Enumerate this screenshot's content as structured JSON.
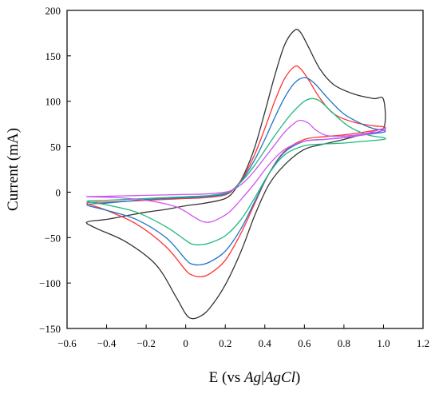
{
  "chart_data": {
    "type": "line",
    "xlabel": "E (vs Ag|AgCl)",
    "xlabel_parts": [
      "E (vs ",
      "Ag",
      "|",
      "AgCl",
      ")"
    ],
    "ylabel": "Current (mA)",
    "xlim": [
      -0.6,
      1.2
    ],
    "ylim": [
      -150,
      200
    ],
    "x_ticks": [
      "−0.6",
      "−0.4",
      "−0.2",
      "0",
      "0.2",
      "0.4",
      "0.6",
      "0.8",
      "1.0",
      "1.2"
    ],
    "y_ticks": [
      "200",
      "150",
      "100",
      "50",
      "0",
      "−50",
      "−100",
      "−150"
    ],
    "x_tick_values": [
      -0.6,
      -0.4,
      -0.2,
      0,
      0.2,
      0.4,
      0.6,
      0.8,
      1.0,
      1.2
    ],
    "y_tick_values": [
      200,
      150,
      100,
      50,
      0,
      -50,
      -100,
      -150
    ],
    "grid": false,
    "legend": "none",
    "series": [
      {
        "color": "#333333",
        "values": [
          [
            -0.5,
            -33
          ],
          [
            -0.4,
            -30
          ],
          [
            -0.3,
            -26
          ],
          [
            -0.2,
            -22
          ],
          [
            -0.1,
            -19
          ],
          [
            0,
            -15
          ],
          [
            0.1,
            -12
          ],
          [
            0.2,
            -7
          ],
          [
            0.25,
            3
          ],
          [
            0.3,
            22
          ],
          [
            0.35,
            50
          ],
          [
            0.4,
            88
          ],
          [
            0.45,
            128
          ],
          [
            0.5,
            162
          ],
          [
            0.55,
            178
          ],
          [
            0.58,
            176
          ],
          [
            0.62,
            160
          ],
          [
            0.68,
            135
          ],
          [
            0.75,
            118
          ],
          [
            0.85,
            108
          ],
          [
            0.95,
            103
          ],
          [
            1.0,
            102
          ],
          [
            1.0,
            70
          ],
          [
            0.9,
            64
          ],
          [
            0.8,
            58
          ],
          [
            0.7,
            53
          ],
          [
            0.6,
            47
          ],
          [
            0.5,
            30
          ],
          [
            0.42,
            8
          ],
          [
            0.35,
            -25
          ],
          [
            0.28,
            -65
          ],
          [
            0.2,
            -102
          ],
          [
            0.12,
            -128
          ],
          [
            0.07,
            -137
          ],
          [
            0.03,
            -139
          ],
          [
            0.0,
            -134
          ],
          [
            -0.05,
            -115
          ],
          [
            -0.15,
            -80
          ],
          [
            -0.3,
            -55
          ],
          [
            -0.45,
            -40
          ],
          [
            -0.5,
            -33
          ]
        ]
      },
      {
        "color": "#ff3333",
        "values": [
          [
            -0.5,
            -12
          ],
          [
            -0.4,
            -11
          ],
          [
            -0.3,
            -10
          ],
          [
            -0.2,
            -9
          ],
          [
            -0.1,
            -8
          ],
          [
            0,
            -7
          ],
          [
            0.1,
            -6
          ],
          [
            0.2,
            -3
          ],
          [
            0.25,
            5
          ],
          [
            0.3,
            20
          ],
          [
            0.35,
            42
          ],
          [
            0.4,
            70
          ],
          [
            0.45,
            100
          ],
          [
            0.5,
            125
          ],
          [
            0.55,
            138
          ],
          [
            0.58,
            136
          ],
          [
            0.62,
            124
          ],
          [
            0.68,
            103
          ],
          [
            0.75,
            86
          ],
          [
            0.85,
            77
          ],
          [
            0.95,
            73
          ],
          [
            1.0,
            72
          ],
          [
            1.0,
            70
          ],
          [
            0.9,
            66
          ],
          [
            0.8,
            63
          ],
          [
            0.7,
            61
          ],
          [
            0.6,
            58
          ],
          [
            0.5,
            45
          ],
          [
            0.42,
            20
          ],
          [
            0.35,
            -12
          ],
          [
            0.28,
            -45
          ],
          [
            0.2,
            -75
          ],
          [
            0.12,
            -90
          ],
          [
            0.07,
            -93
          ],
          [
            0.03,
            -91
          ],
          [
            0.0,
            -86
          ],
          [
            -0.1,
            -60
          ],
          [
            -0.25,
            -35
          ],
          [
            -0.4,
            -20
          ],
          [
            -0.5,
            -12
          ]
        ]
      },
      {
        "color": "#1f73c9",
        "values": [
          [
            -0.5,
            -14
          ],
          [
            -0.4,
            -12
          ],
          [
            -0.3,
            -10
          ],
          [
            -0.2,
            -8
          ],
          [
            -0.1,
            -7
          ],
          [
            0,
            -6
          ],
          [
            0.1,
            -5
          ],
          [
            0.2,
            -2
          ],
          [
            0.25,
            5
          ],
          [
            0.3,
            18
          ],
          [
            0.35,
            36
          ],
          [
            0.4,
            58
          ],
          [
            0.45,
            82
          ],
          [
            0.5,
            104
          ],
          [
            0.55,
            120
          ],
          [
            0.6,
            126
          ],
          [
            0.65,
            120
          ],
          [
            0.72,
            103
          ],
          [
            0.8,
            86
          ],
          [
            0.9,
            74
          ],
          [
            0.95,
            70
          ],
          [
            1.0,
            68
          ],
          [
            1.0,
            66
          ],
          [
            0.9,
            63
          ],
          [
            0.8,
            60
          ],
          [
            0.7,
            58
          ],
          [
            0.6,
            56
          ],
          [
            0.5,
            44
          ],
          [
            0.42,
            20
          ],
          [
            0.35,
            -10
          ],
          [
            0.28,
            -40
          ],
          [
            0.2,
            -65
          ],
          [
            0.12,
            -77
          ],
          [
            0.07,
            -80
          ],
          [
            0.03,
            -79
          ],
          [
            0.0,
            -74
          ],
          [
            -0.1,
            -50
          ],
          [
            -0.25,
            -30
          ],
          [
            -0.4,
            -20
          ],
          [
            -0.5,
            -14
          ]
        ]
      },
      {
        "color": "#1db87e",
        "values": [
          [
            -0.5,
            -10
          ],
          [
            -0.4,
            -9
          ],
          [
            -0.3,
            -8
          ],
          [
            -0.2,
            -7
          ],
          [
            -0.1,
            -6
          ],
          [
            0,
            -5
          ],
          [
            0.1,
            -4
          ],
          [
            0.2,
            -1
          ],
          [
            0.25,
            5
          ],
          [
            0.3,
            16
          ],
          [
            0.35,
            30
          ],
          [
            0.4,
            46
          ],
          [
            0.45,
            62
          ],
          [
            0.5,
            77
          ],
          [
            0.55,
            90
          ],
          [
            0.6,
            100
          ],
          [
            0.64,
            103
          ],
          [
            0.68,
            100
          ],
          [
            0.74,
            88
          ],
          [
            0.82,
            73
          ],
          [
            0.92,
            63
          ],
          [
            1.0,
            60
          ],
          [
            1.0,
            58
          ],
          [
            0.9,
            56
          ],
          [
            0.8,
            54
          ],
          [
            0.7,
            53
          ],
          [
            0.6,
            51
          ],
          [
            0.5,
            41
          ],
          [
            0.42,
            20
          ],
          [
            0.35,
            -6
          ],
          [
            0.28,
            -30
          ],
          [
            0.2,
            -48
          ],
          [
            0.12,
            -56
          ],
          [
            0.07,
            -58
          ],
          [
            0.03,
            -57
          ],
          [
            0.0,
            -53
          ],
          [
            -0.1,
            -38
          ],
          [
            -0.25,
            -22
          ],
          [
            -0.4,
            -14
          ],
          [
            -0.5,
            -10
          ]
        ]
      },
      {
        "color": "#cc55ee",
        "values": [
          [
            -0.5,
            -5
          ],
          [
            -0.4,
            -4.5
          ],
          [
            -0.3,
            -4
          ],
          [
            -0.2,
            -3.5
          ],
          [
            -0.1,
            -3
          ],
          [
            0,
            -2.5
          ],
          [
            0.1,
            -2
          ],
          [
            0.2,
            0
          ],
          [
            0.25,
            4
          ],
          [
            0.3,
            12
          ],
          [
            0.35,
            24
          ],
          [
            0.4,
            38
          ],
          [
            0.45,
            52
          ],
          [
            0.5,
            66
          ],
          [
            0.55,
            76
          ],
          [
            0.58,
            79
          ],
          [
            0.62,
            76
          ],
          [
            0.66,
            68
          ],
          [
            0.72,
            62
          ],
          [
            0.82,
            62
          ],
          [
            0.92,
            65
          ],
          [
            1.0,
            70
          ],
          [
            1.0,
            68
          ],
          [
            0.9,
            63
          ],
          [
            0.8,
            60
          ],
          [
            0.7,
            58
          ],
          [
            0.6,
            56
          ],
          [
            0.5,
            47
          ],
          [
            0.42,
            30
          ],
          [
            0.35,
            10
          ],
          [
            0.28,
            -8
          ],
          [
            0.22,
            -22
          ],
          [
            0.16,
            -30
          ],
          [
            0.12,
            -33
          ],
          [
            0.08,
            -32
          ],
          [
            0.04,
            -27
          ],
          [
            -0.05,
            -16
          ],
          [
            -0.2,
            -9
          ],
          [
            -0.35,
            -6
          ],
          [
            -0.5,
            -5
          ]
        ]
      }
    ]
  }
}
